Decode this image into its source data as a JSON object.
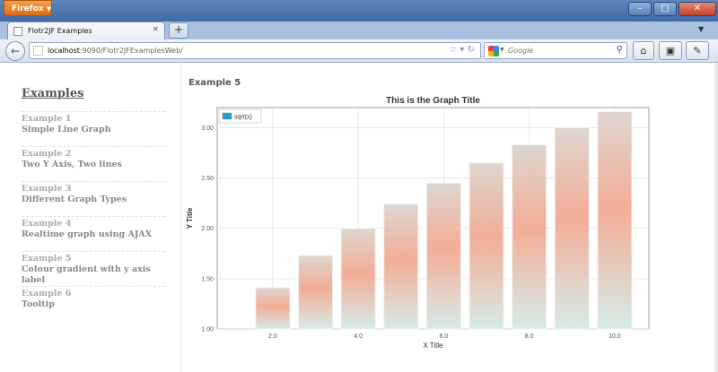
{
  "browser": {
    "app_button": "Firefox",
    "tab_title": "Flotr2JF Examples",
    "new_tab": "+",
    "url_host": "localhost",
    "url_path": ":9090/Flotr2JFExamplesWeb/",
    "search_placeholder": "Google"
  },
  "sidebar": {
    "title": "Examples",
    "items": [
      {
        "num": "Example 1",
        "desc": "Simple Line Graph"
      },
      {
        "num": "Example 2",
        "desc": "Two Y Axis, Two lines"
      },
      {
        "num": "Example 3",
        "desc": "Different Graph Types"
      },
      {
        "num": "Example 4",
        "desc": "Realtime graph using AJAX"
      },
      {
        "num": "Example 5",
        "desc": "Colour gradient with y axis label"
      },
      {
        "num": "Example 6",
        "desc": "Tooltip"
      }
    ]
  },
  "main": {
    "heading": "Example 5"
  },
  "chart_data": {
    "type": "bar",
    "title": "This is the Graph Title",
    "xlabel": "X Title",
    "ylabel": "Y Title",
    "x": [
      2,
      3,
      4,
      5,
      6,
      7,
      8,
      9,
      10
    ],
    "series": [
      {
        "name": "sqrt(x)",
        "values": [
          1.41,
          1.73,
          2.0,
          2.24,
          2.45,
          2.65,
          2.83,
          3.0,
          3.16
        ]
      }
    ],
    "xlim": [
      0.7,
      10.8
    ],
    "ylim": [
      1.0,
      3.2
    ],
    "xticks": [
      "2.0",
      "4.0",
      "6.0",
      "8.0",
      "10.0"
    ],
    "yticks": [
      "1.00",
      "1.50",
      "2.00",
      "2.50",
      "3.00"
    ],
    "grid": true,
    "legend": "top-left",
    "bar_colors": [
      "#d6ebe8",
      "#f3ad96",
      "#ddd6d0"
    ],
    "legend_color": "#1f9fd8"
  }
}
